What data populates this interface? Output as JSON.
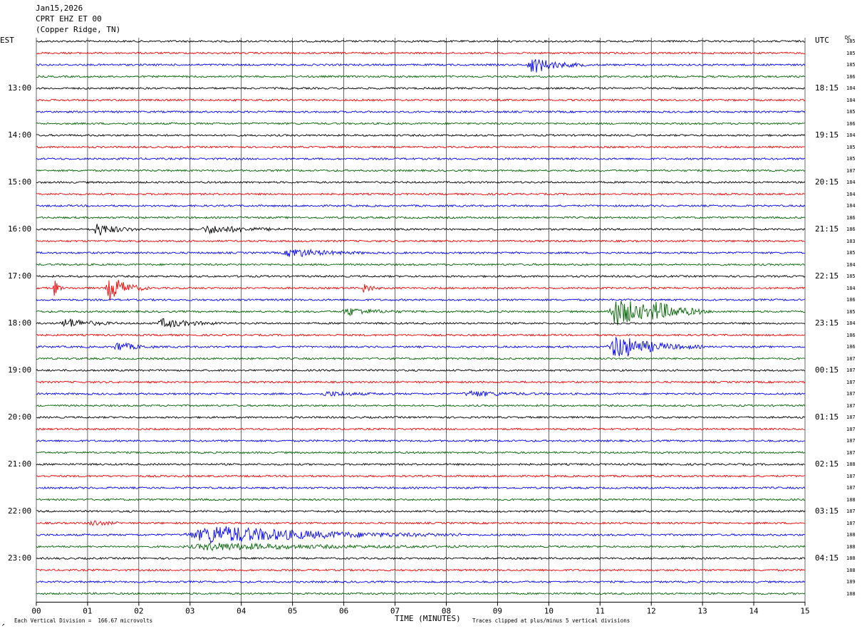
{
  "header": {
    "date": "Jan15,2026",
    "station": "CPRT EHZ ET 00",
    "location": "(Copper Ridge, TN)"
  },
  "axes": {
    "left_tz": "EST",
    "right_tz": "UTC",
    "dc_label": "DC",
    "x_title": "TIME (MINUTES)"
  },
  "footer": {
    "scale_note": "Each Vertical Division =  166.67 microvolts",
    "clip_note": "Traces clipped at plus/minus 5 vertical divisions",
    "mark": "↗"
  },
  "chart_data": {
    "type": "line",
    "title": "",
    "xlabel": "TIME (MINUTES)",
    "x_ticks": [
      "00",
      "01",
      "02",
      "03",
      "04",
      "05",
      "06",
      "07",
      "08",
      "09",
      "10",
      "11",
      "12",
      "13",
      "14",
      "15"
    ],
    "xlim": [
      0,
      15
    ],
    "trace_colors": [
      "#000000",
      "#ff0000",
      "#0000ff",
      "#006400"
    ],
    "left_hour_labels": [
      {
        "row": 4,
        "text": "13:00"
      },
      {
        "row": 8,
        "text": "14:00"
      },
      {
        "row": 12,
        "text": "15:00"
      },
      {
        "row": 16,
        "text": "16:00"
      },
      {
        "row": 20,
        "text": "17:00"
      },
      {
        "row": 24,
        "text": "18:00"
      },
      {
        "row": 28,
        "text": "19:00"
      },
      {
        "row": 32,
        "text": "20:00"
      },
      {
        "row": 36,
        "text": "21:00"
      },
      {
        "row": 40,
        "text": "22:00"
      },
      {
        "row": 44,
        "text": "23:00"
      }
    ],
    "right_hour_labels": [
      {
        "row": 4,
        "text": "18:15"
      },
      {
        "row": 8,
        "text": "19:15"
      },
      {
        "row": 12,
        "text": "20:15"
      },
      {
        "row": 16,
        "text": "21:15"
      },
      {
        "row": 20,
        "text": "22:15"
      },
      {
        "row": 24,
        "text": "23:15"
      },
      {
        "row": 28,
        "text": "00:15"
      },
      {
        "row": 32,
        "text": "01:15"
      },
      {
        "row": 36,
        "text": "02:15"
      },
      {
        "row": 40,
        "text": "03:15"
      },
      {
        "row": 44,
        "text": "04:15"
      }
    ],
    "dc_values": [
      "185",
      "185",
      "185",
      "186",
      "184",
      "184",
      "185",
      "186",
      "184",
      "185",
      "185",
      "187",
      "184",
      "184",
      "184",
      "186",
      "186",
      "183",
      "185",
      "184",
      "185",
      "184",
      "186",
      "185",
      "184",
      "186",
      "186",
      "187",
      "187",
      "187",
      "187",
      "187",
      "187",
      "187",
      "187",
      "187",
      "188",
      "187",
      "187",
      "188",
      "187",
      "187",
      "188",
      "188",
      "188",
      "188",
      "189",
      "188"
    ],
    "events": [
      {
        "row": 2,
        "minute": 9.7,
        "amp": 2.2,
        "width": 0.35
      },
      {
        "row": 16,
        "minute": 1.2,
        "amp": 1.6,
        "width": 0.3
      },
      {
        "row": 16,
        "minute": 3.4,
        "amp": 1.0,
        "width": 0.6
      },
      {
        "row": 18,
        "minute": 5.0,
        "amp": 1.2,
        "width": 0.5
      },
      {
        "row": 21,
        "minute": 1.45,
        "amp": 3.5,
        "width": 0.25
      },
      {
        "row": 21,
        "minute": 0.35,
        "amp": 2.5,
        "width": 0.06
      },
      {
        "row": 21,
        "minute": 6.4,
        "amp": 1.5,
        "width": 0.1
      },
      {
        "row": 23,
        "minute": 11.35,
        "amp": 3.8,
        "width": 0.55
      },
      {
        "row": 23,
        "minute": 12.1,
        "amp": 1.5,
        "width": 0.4
      },
      {
        "row": 23,
        "minute": 6.1,
        "amp": 1.0,
        "width": 0.4
      },
      {
        "row": 24,
        "minute": 0.6,
        "amp": 1.3,
        "width": 0.35
      },
      {
        "row": 24,
        "minute": 2.5,
        "amp": 1.2,
        "width": 0.4
      },
      {
        "row": 26,
        "minute": 11.35,
        "amp": 3.2,
        "width": 0.55
      },
      {
        "row": 26,
        "minute": 1.6,
        "amp": 1.3,
        "width": 0.25
      },
      {
        "row": 30,
        "minute": 8.5,
        "amp": 0.7,
        "width": 0.5
      },
      {
        "row": 30,
        "minute": 5.7,
        "amp": 0.6,
        "width": 0.4
      },
      {
        "row": 41,
        "minute": 1.1,
        "amp": 0.8,
        "width": 0.2
      },
      {
        "row": 42,
        "minute": 3.5,
        "amp": 2.4,
        "width": 1.6
      },
      {
        "row": 43,
        "minute": 3.5,
        "amp": 0.9,
        "width": 1.6
      }
    ]
  }
}
